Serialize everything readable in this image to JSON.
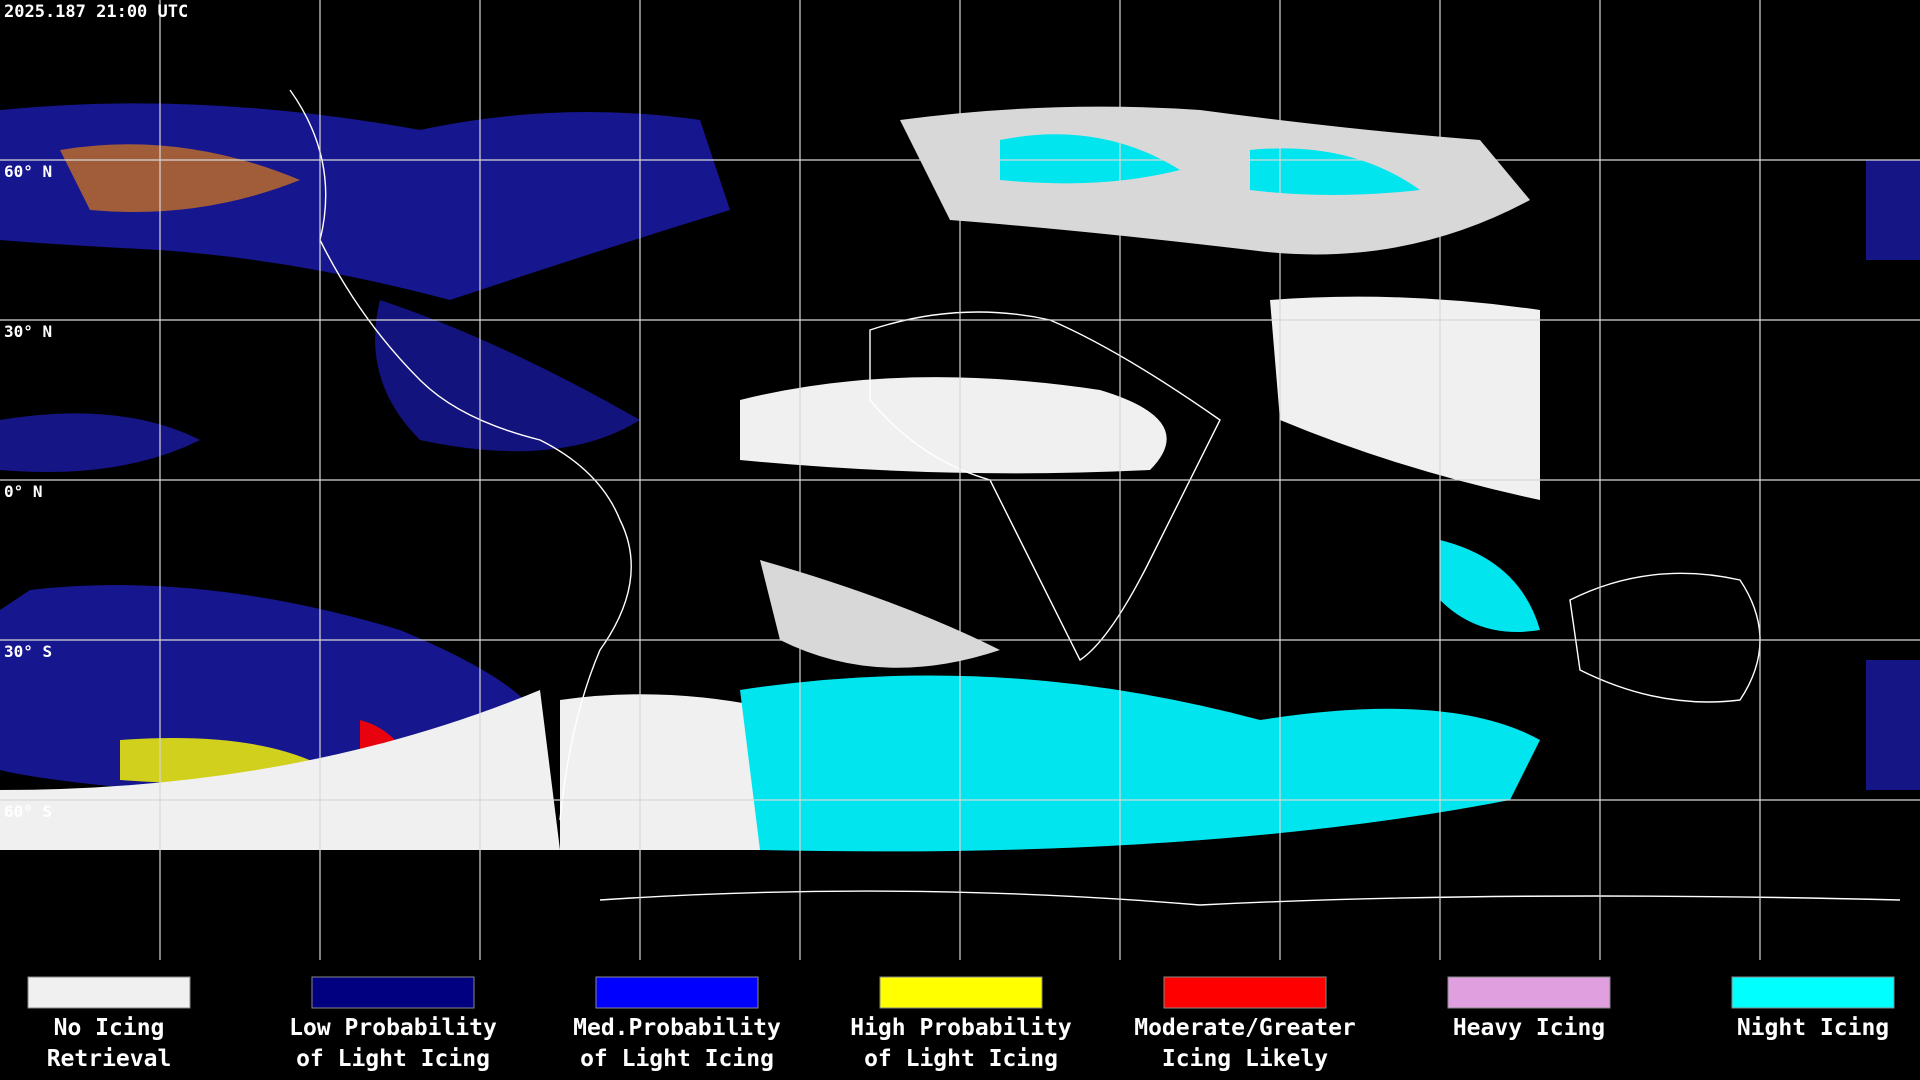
{
  "header": {
    "timestamp": "2025.187 21:00 UTC"
  },
  "latitude_labels": [
    "60° N",
    "30° N",
    "0° N",
    "30° S",
    "60° S"
  ],
  "legend": [
    {
      "lines": [
        "No Icing",
        "Retrieval"
      ],
      "color": "#f0f0f0"
    },
    {
      "lines": [
        "Low Probability",
        "of Light Icing"
      ],
      "color": "#000080"
    },
    {
      "lines": [
        "Med.Probability",
        "of Light Icing"
      ],
      "color": "#0000ff"
    },
    {
      "lines": [
        "High Probability",
        "of Light Icing"
      ],
      "color": "#ffff00"
    },
    {
      "lines": [
        "Moderate/Greater",
        "Icing Likely"
      ],
      "color": "#ff0000"
    },
    {
      "lines": [
        "Heavy Icing"
      ],
      "color": "#e0a0e0"
    },
    {
      "lines": [
        "Night Icing"
      ],
      "color": "#00ffff"
    }
  ]
}
